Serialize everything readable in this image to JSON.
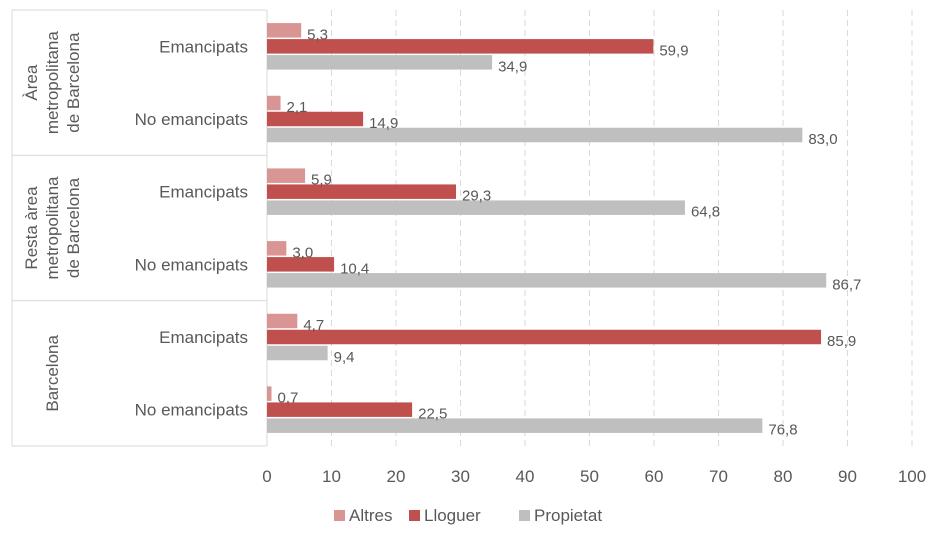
{
  "chart_data": {
    "type": "bar",
    "orientation": "horizontal",
    "grid": true,
    "legend_position": "bottom",
    "xlim": [
      0,
      100
    ],
    "x_ticks": [
      0,
      10,
      20,
      30,
      40,
      50,
      60,
      70,
      80,
      90,
      100
    ],
    "decimal_separator": ",",
    "groups": [
      {
        "label": "Àrea metropolitana de Barcelona",
        "label_lines": [
          "Àrea",
          "metropolitana",
          "de Barcelona"
        ],
        "categories": [
          {
            "label": "Emancipats",
            "values": [
              5.3,
              59.9,
              34.9
            ]
          },
          {
            "label": "No emancipats",
            "values": [
              2.1,
              14.9,
              83.0
            ]
          }
        ]
      },
      {
        "label": "Resta àrea metropolitana de Barcelona",
        "label_lines": [
          "Resta àrea",
          "metropolitana",
          "de Barcelona"
        ],
        "categories": [
          {
            "label": "Emancipats",
            "values": [
              5.9,
              29.3,
              64.8
            ]
          },
          {
            "label": "No emancipats",
            "values": [
              3.0,
              10.4,
              86.7
            ]
          }
        ]
      },
      {
        "label": "Barcelona",
        "label_lines": [
          "Barcelona"
        ],
        "categories": [
          {
            "label": "Emancipats",
            "values": [
              4.7,
              85.9,
              9.4
            ]
          },
          {
            "label": "No emancipats",
            "values": [
              0.7,
              22.5,
              76.8
            ]
          }
        ]
      }
    ],
    "series": [
      {
        "name": "Altres",
        "color": "#D99594"
      },
      {
        "name": "Lloguer",
        "color": "#C0504D"
      },
      {
        "name": "Propietat",
        "color": "#BFBFBF"
      }
    ]
  }
}
